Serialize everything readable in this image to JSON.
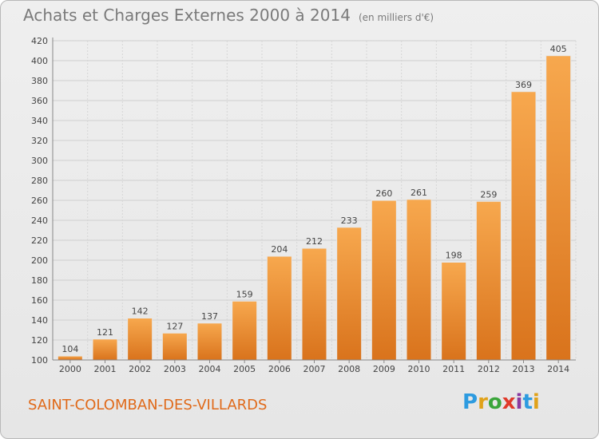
{
  "header": {
    "title": "Achats et Charges Externes 2000 à 2014",
    "unit": "(en milliers d'€)"
  },
  "footer": {
    "town": "SAINT-COLOMBAN-DES-VILLARDS",
    "logo": "Proxiti",
    "logo_letters": [
      "P",
      "r",
      "o",
      "x",
      "i",
      "t",
      "i"
    ],
    "logo_colors": [
      "#2d9be0",
      "#e0a21a",
      "#3aa53a",
      "#e03a2a",
      "#8a3aa0",
      "#2d9be0",
      "#e0a21a"
    ]
  },
  "chart_data": {
    "type": "bar",
    "title": "Achats et Charges Externes 2000 à 2014",
    "xlabel": "",
    "ylabel": "",
    "categories": [
      "2000",
      "2001",
      "2002",
      "2003",
      "2004",
      "2005",
      "2006",
      "2007",
      "2008",
      "2009",
      "2010",
      "2011",
      "2012",
      "2013",
      "2014"
    ],
    "values": [
      104,
      121,
      142,
      127,
      137,
      159,
      204,
      212,
      233,
      260,
      261,
      198,
      259,
      369,
      405
    ],
    "ylim": [
      100,
      420
    ],
    "yticks": [
      100,
      120,
      140,
      160,
      180,
      200,
      220,
      240,
      260,
      280,
      300,
      320,
      340,
      360,
      380,
      400,
      420
    ],
    "grid": true,
    "bar_color": "#f0922e"
  }
}
